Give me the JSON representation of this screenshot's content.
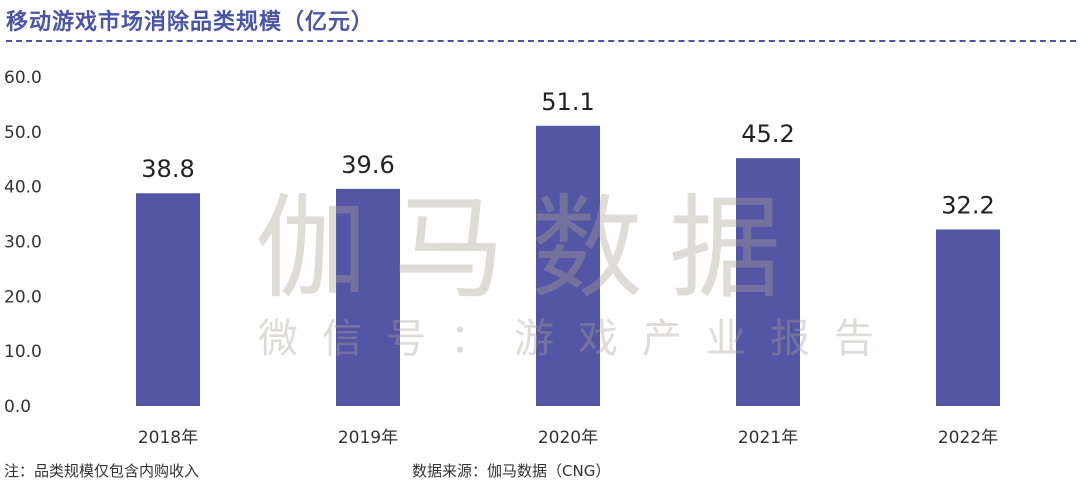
{
  "header": {
    "title": "移动游戏市场消除品类规模（亿元）"
  },
  "watermark": {
    "main": "伽马数据",
    "sub": "微信号：游戏产业报告"
  },
  "footer": {
    "note": "注：品类规模仅包含内购收入",
    "source": "数据来源：伽马数据（CNG）"
  },
  "colors": {
    "bar": "#5355a5",
    "title": "#4a55a6"
  },
  "chart_data": {
    "type": "bar",
    "title": "移动游戏市场消除品类规模（亿元）",
    "categories": [
      "2018年",
      "2019年",
      "2020年",
      "2021年",
      "2022年"
    ],
    "values": [
      38.8,
      39.6,
      51.1,
      45.2,
      32.2
    ],
    "value_labels": [
      "38.8",
      "39.6",
      "51.1",
      "45.2",
      "32.2"
    ],
    "y_ticks": [
      "0.0",
      "10.0",
      "20.0",
      "30.0",
      "40.0",
      "50.0",
      "60.0"
    ],
    "ylim": [
      0,
      60
    ],
    "grid": false,
    "legend": "none"
  }
}
